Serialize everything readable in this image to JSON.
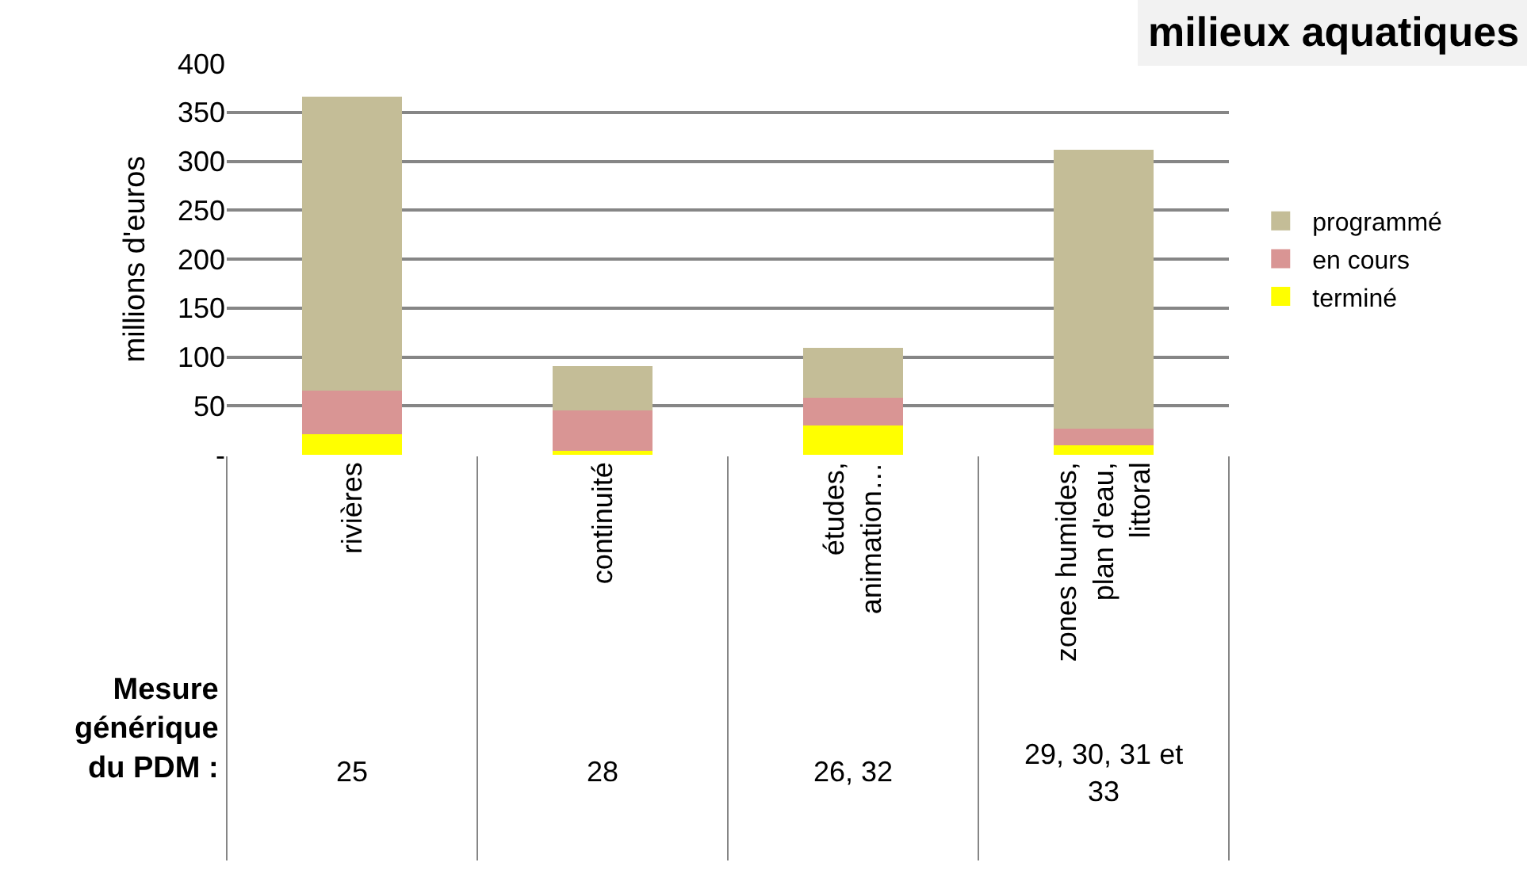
{
  "chart_data": {
    "type": "bar",
    "stacked": true,
    "title": "milieux aquatiques",
    "ylabel": "millions d'euros",
    "categories": [
      "rivières",
      "continuité",
      "études, animation…",
      "zones humides, plan d'eau, littoral"
    ],
    "series": [
      {
        "name": "terminé",
        "color": "#ffff00",
        "values": [
          21,
          4,
          30,
          10
        ]
      },
      {
        "name": "en cours",
        "color": "#d99594",
        "values": [
          45,
          41,
          28,
          17
        ]
      },
      {
        "name": "programmé",
        "color": "#c4bd97",
        "values": [
          300,
          46,
          51,
          285
        ]
      }
    ],
    "ylim": [
      0,
      400
    ],
    "yticks": [
      {
        "value": 0,
        "label": "-"
      },
      50,
      100,
      150,
      200,
      250,
      300,
      350,
      400
    ],
    "grid": "y",
    "legend": "right",
    "annotations": [
      "Mesure générique du PDM :",
      "25",
      "28",
      "26, 32",
      "29, 30, 31 et 33"
    ]
  }
}
